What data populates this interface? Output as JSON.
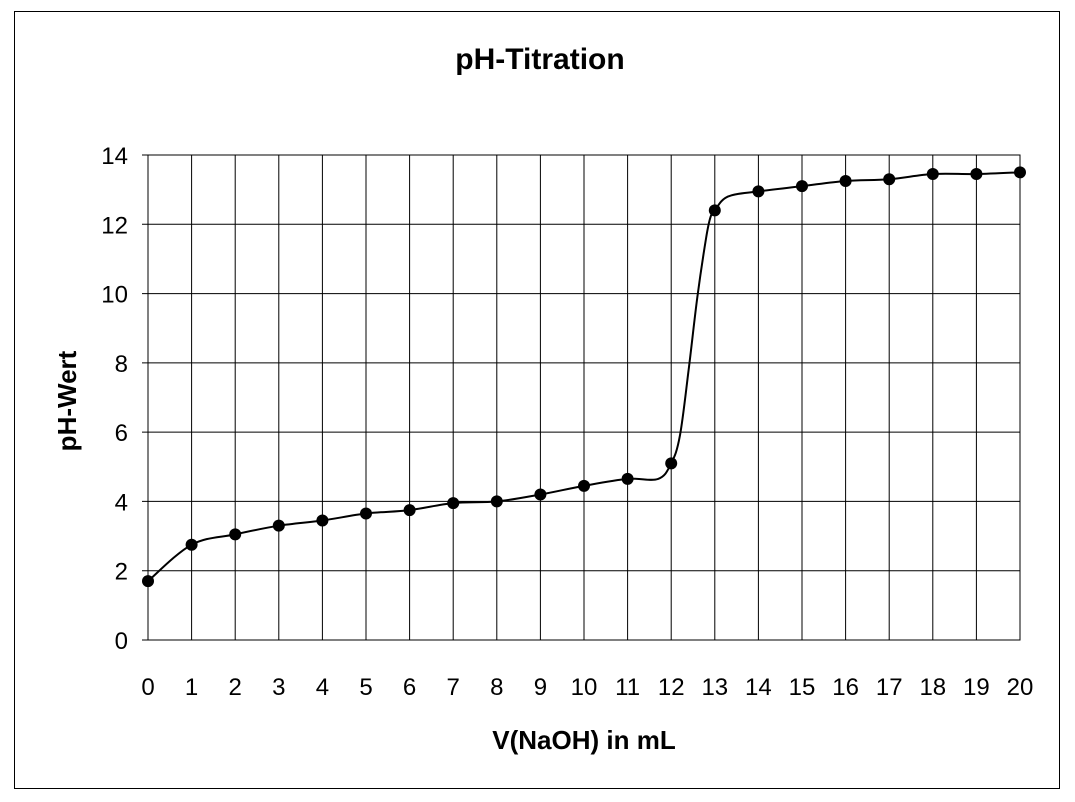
{
  "chart_data": {
    "type": "line",
    "title": "pH-Titration",
    "xlabel": "V(NaOH) in mL",
    "ylabel": "pH-Wert",
    "xlim": [
      0,
      20
    ],
    "ylim": [
      0,
      14
    ],
    "x_ticks": [
      0,
      1,
      2,
      3,
      4,
      5,
      6,
      7,
      8,
      9,
      10,
      11,
      12,
      13,
      14,
      15,
      16,
      17,
      18,
      19,
      20
    ],
    "y_ticks": [
      0,
      2,
      4,
      6,
      8,
      10,
      12,
      14
    ],
    "grid": true,
    "legend": "none",
    "series": [
      {
        "marker": "filled-circle",
        "color": "#000000",
        "x": [
          0,
          1,
          2,
          3,
          4,
          5,
          6,
          7,
          8,
          9,
          10,
          11,
          12,
          13,
          14,
          15,
          16,
          17,
          18,
          19,
          20
        ],
        "y": [
          1.7,
          2.75,
          3.05,
          3.3,
          3.45,
          3.65,
          3.75,
          3.95,
          4.0,
          4.2,
          4.45,
          4.65,
          5.1,
          12.4,
          12.95,
          13.1,
          13.25,
          13.3,
          13.45,
          13.45,
          13.5
        ]
      }
    ],
    "trend_curve": {
      "x": [
        0,
        1,
        2,
        3,
        4,
        5,
        6,
        7,
        8,
        9,
        10,
        11,
        11.7,
        12,
        12.2,
        12.4,
        12.6,
        12.8,
        12.9,
        13,
        13.3,
        14,
        15,
        16,
        17,
        18,
        19,
        20
      ],
      "y": [
        1.7,
        2.75,
        3.05,
        3.3,
        3.45,
        3.65,
        3.75,
        3.95,
        4.0,
        4.2,
        4.45,
        4.65,
        4.65,
        5.1,
        5.9,
        7.8,
        9.9,
        11.6,
        12.2,
        12.4,
        12.8,
        12.95,
        13.1,
        13.25,
        13.3,
        13.45,
        13.45,
        13.5
      ]
    }
  }
}
